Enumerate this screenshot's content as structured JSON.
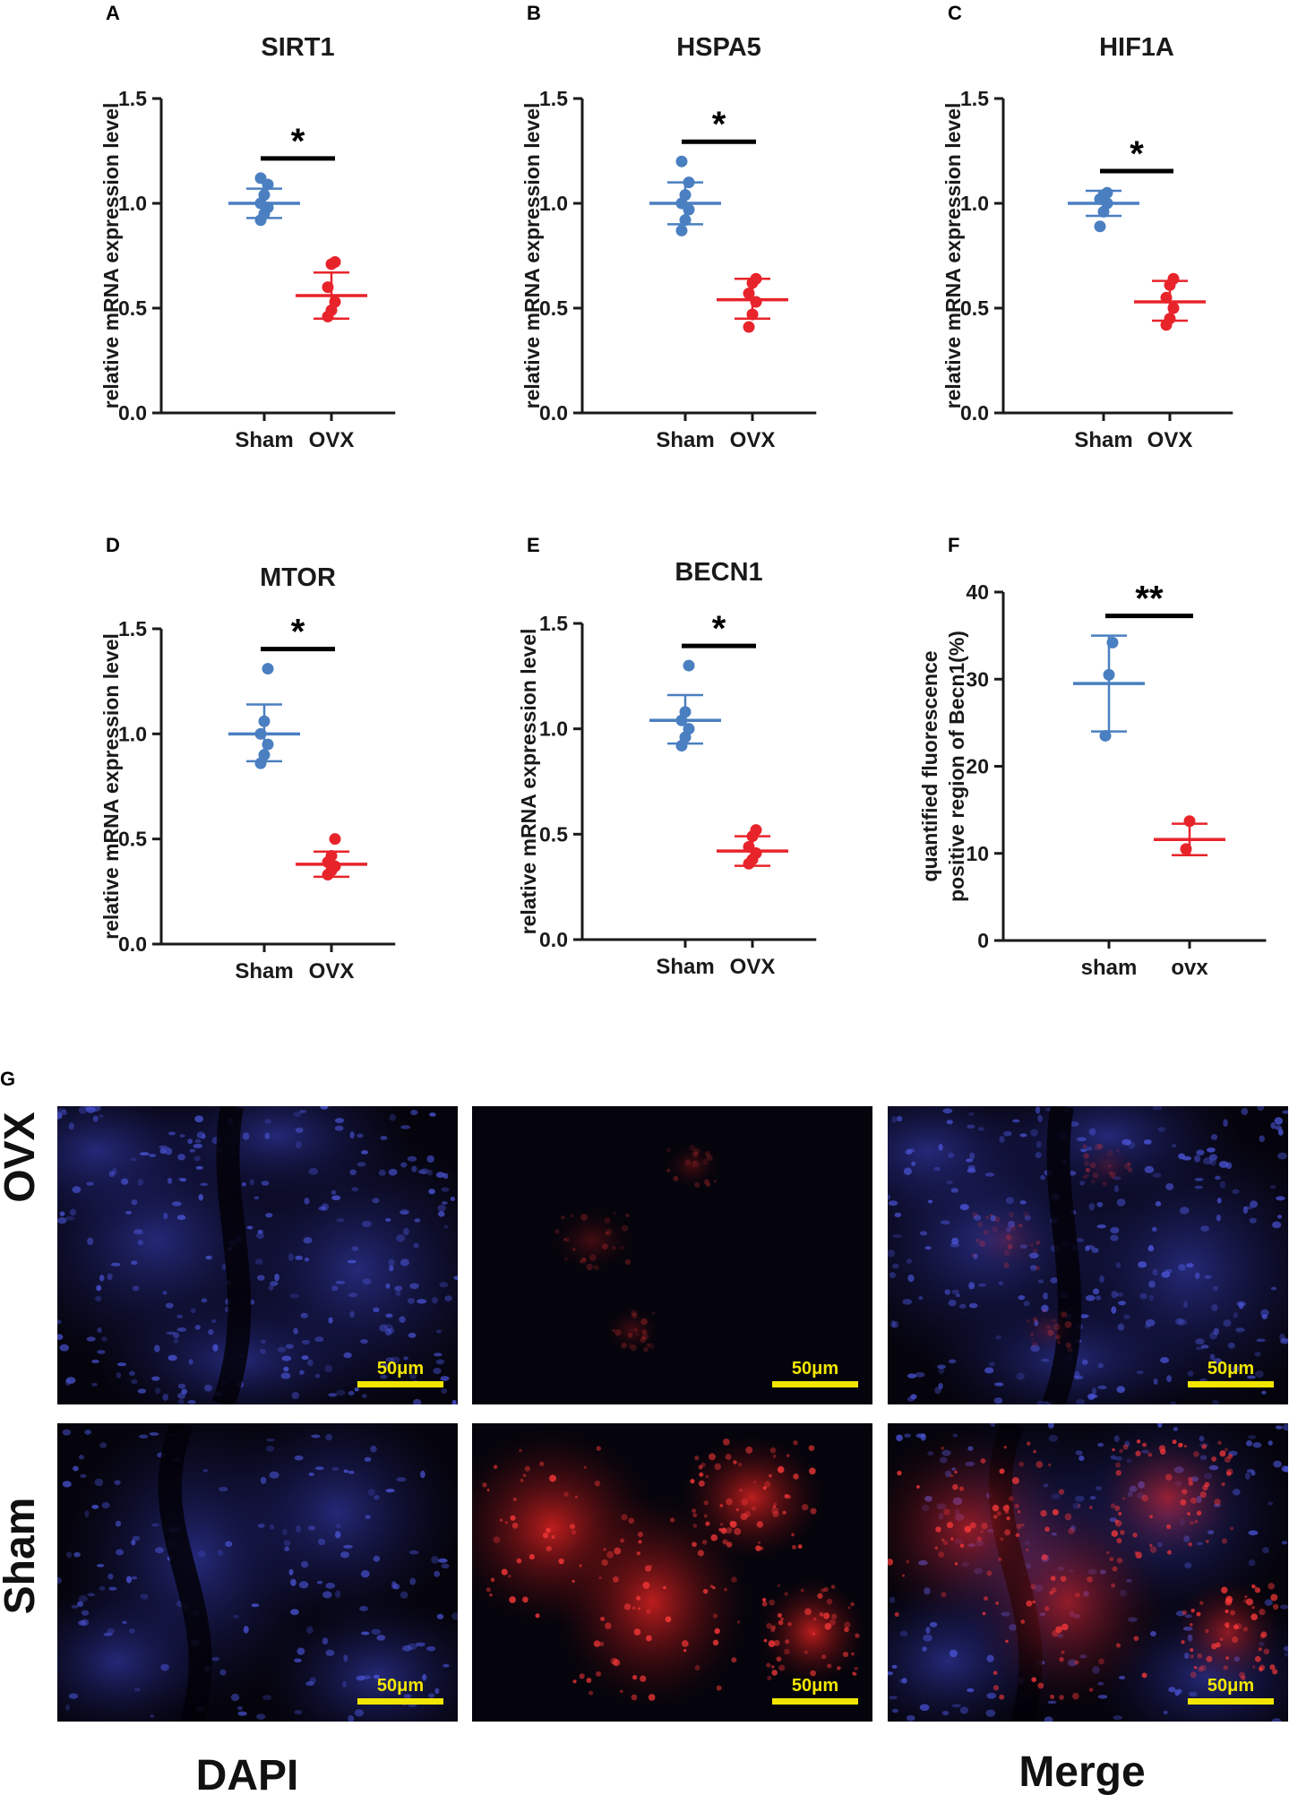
{
  "colors": {
    "sham": "#4a7fc1",
    "ovx": "#e8242b",
    "scale_bar": "#f2e600"
  },
  "chart_data": [
    {
      "panel": "A",
      "type": "scatter",
      "title": "SIRT1",
      "ylabel": "relative mRNA expression level",
      "categories": [
        "Sham",
        "OVX"
      ],
      "ylim": [
        0,
        1.5
      ],
      "yticks": [
        "0.0",
        "0.5",
        "1.0",
        "1.5"
      ],
      "grid": false,
      "significance": "*",
      "series": [
        {
          "category": "Sham",
          "points": [
            0.92,
            0.95,
            0.98,
            1.0,
            1.04,
            1.09,
            1.12
          ],
          "mean": 1.0,
          "err": [
            0.93,
            1.07
          ]
        },
        {
          "category": "OVX",
          "points": [
            0.46,
            0.49,
            0.53,
            0.6,
            0.71,
            0.72
          ],
          "mean": 0.56,
          "err": [
            0.45,
            0.67
          ]
        }
      ]
    },
    {
      "panel": "B",
      "type": "scatter",
      "title": "HSPA5",
      "ylabel": "relative mRNA expression level",
      "categories": [
        "Sham",
        "OVX"
      ],
      "ylim": [
        0,
        1.5
      ],
      "yticks": [
        "0.0",
        "0.5",
        "1.0",
        "1.5"
      ],
      "grid": false,
      "significance": "*",
      "series": [
        {
          "category": "Sham",
          "points": [
            0.87,
            0.92,
            0.97,
            1.0,
            1.04,
            1.1,
            1.2
          ],
          "mean": 1.0,
          "err": [
            0.9,
            1.1
          ]
        },
        {
          "category": "OVX",
          "points": [
            0.41,
            0.47,
            0.53,
            0.57,
            0.62,
            0.64
          ],
          "mean": 0.54,
          "err": [
            0.45,
            0.64
          ]
        }
      ]
    },
    {
      "panel": "C",
      "type": "scatter",
      "title": "HIF1A",
      "ylabel": "relative mRNA expression level",
      "categories": [
        "Sham",
        "OVX"
      ],
      "ylim": [
        0,
        1.5
      ],
      "yticks": [
        "0.0",
        "0.5",
        "1.0",
        "1.5"
      ],
      "grid": false,
      "significance": "*",
      "series": [
        {
          "category": "Sham",
          "points": [
            0.89,
            0.96,
            1.0,
            1.02,
            1.04,
            1.05
          ],
          "mean": 1.0,
          "err": [
            0.94,
            1.06
          ]
        },
        {
          "category": "OVX",
          "points": [
            0.42,
            0.45,
            0.5,
            0.55,
            0.61,
            0.64
          ],
          "mean": 0.53,
          "err": [
            0.44,
            0.63
          ]
        }
      ]
    },
    {
      "panel": "D",
      "type": "scatter",
      "title": "MTOR",
      "ylabel": "relative mRNA expression level",
      "categories": [
        "Sham",
        "OVX"
      ],
      "ylim": [
        0,
        1.5
      ],
      "yticks": [
        "0.0",
        "0.5",
        "1.0",
        "1.5"
      ],
      "grid": false,
      "significance": "*",
      "series": [
        {
          "category": "Sham",
          "points": [
            0.86,
            0.9,
            0.95,
            1.0,
            1.06,
            1.31
          ],
          "mean": 1.0,
          "err": [
            0.87,
            1.14
          ]
        },
        {
          "category": "OVX",
          "points": [
            0.33,
            0.35,
            0.37,
            0.39,
            0.42,
            0.5
          ],
          "mean": 0.38,
          "err": [
            0.32,
            0.44
          ]
        }
      ]
    },
    {
      "panel": "E",
      "type": "scatter",
      "title": "BECN1",
      "ylabel": "relative mRNA expression level",
      "categories": [
        "Sham",
        "OVX"
      ],
      "ylim": [
        0,
        1.5
      ],
      "yticks": [
        "0.0",
        "0.5",
        "1.0",
        "1.5"
      ],
      "grid": false,
      "significance": "*",
      "series": [
        {
          "category": "Sham",
          "points": [
            0.92,
            0.96,
            1.0,
            1.04,
            1.08,
            1.3
          ],
          "mean": 1.04,
          "err": [
            0.93,
            1.16
          ]
        },
        {
          "category": "OVX",
          "points": [
            0.36,
            0.38,
            0.41,
            0.44,
            0.49,
            0.52
          ],
          "mean": 0.42,
          "err": [
            0.35,
            0.49
          ]
        }
      ]
    },
    {
      "panel": "F",
      "type": "scatter",
      "title": "",
      "ylabel": "quantified fluorescence positive region of Becn1(%)",
      "ylabel_lines": [
        "quantified fluorescence",
        "positive region of Becn1(%)"
      ],
      "categories": [
        "sham",
        "ovx"
      ],
      "ylim": [
        0,
        40
      ],
      "yticks": [
        "0",
        "10",
        "20",
        "30",
        "40"
      ],
      "grid": false,
      "significance": "**",
      "series": [
        {
          "category": "sham",
          "points": [
            23.5,
            30.5,
            34.2
          ],
          "mean": 29.5,
          "err": [
            24.0,
            35.0
          ]
        },
        {
          "category": "ovx",
          "points": [
            10.5,
            13.7
          ],
          "mean": 11.6,
          "err": [
            9.8,
            13.4
          ]
        }
      ]
    }
  ],
  "panel_g": {
    "letter": "G",
    "row_labels": [
      "OVX",
      "Sham"
    ],
    "column_labels": [
      "DAPI",
      "Merge"
    ],
    "scale_bar": "50μm"
  }
}
